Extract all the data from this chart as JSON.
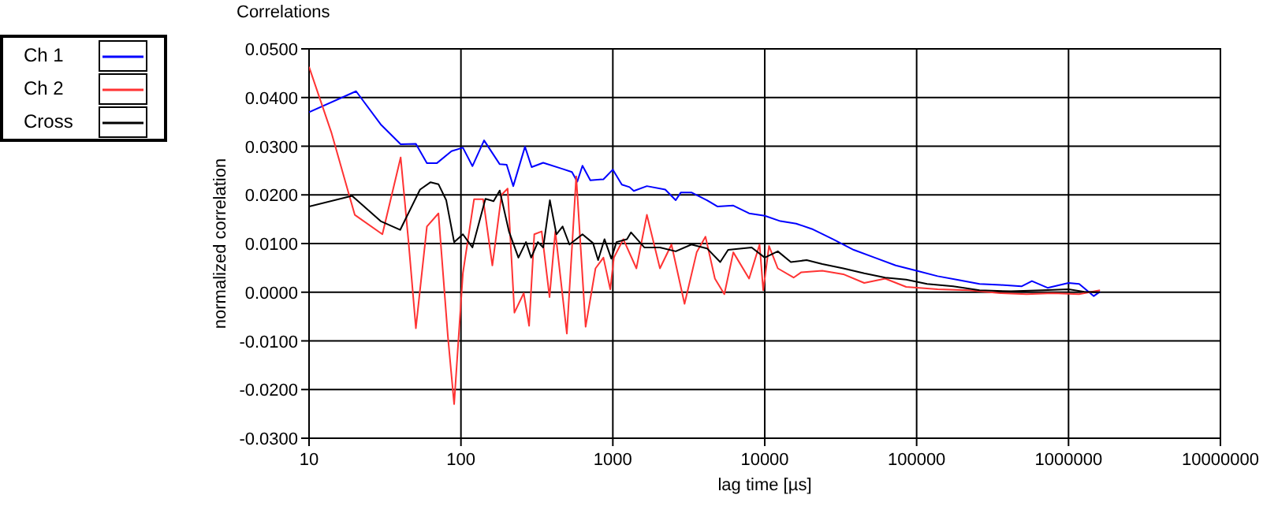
{
  "chart_data": {
    "type": "line",
    "title": "Correlations",
    "xlabel": "lag time [µs]",
    "ylabel": "normalized correlation",
    "log": "x",
    "grid": true,
    "legend": "top left",
    "line_style": "solid",
    "marker": "none",
    "xlim": [
      10,
      10000000
    ],
    "xticks": [
      10,
      100,
      1000,
      10000,
      100000,
      1000000,
      10000000
    ],
    "ylim": [
      -0.03,
      0.05
    ],
    "yticks": [
      {
        "value": -0.03,
        "label": "-0.0300"
      },
      {
        "value": -0.02,
        "label": "-0.0200"
      },
      {
        "value": -0.01,
        "label": "-0.0100"
      },
      {
        "value": 0,
        "label": "0.0000"
      },
      {
        "value": 0.01,
        "label": "0.0100"
      },
      {
        "value": 0.02,
        "label": "0.0200"
      },
      {
        "value": 0.03,
        "label": "0.0300"
      },
      {
        "value": 0.04,
        "label": "0.0400"
      },
      {
        "value": 0.05,
        "label": "0.0500"
      }
    ],
    "series": [
      {
        "name": "Ch 1",
        "color": "#0000ff",
        "x": [
          10,
          20.4,
          29.6,
          40.1,
          50.5,
          59.7,
          69.3,
          86.7,
          103,
          119,
          142,
          180,
          200,
          221,
          264,
          292,
          348,
          459,
          538,
          583,
          631,
          711,
          867,
          1000,
          1146,
          1288,
          1374,
          1675,
          2213,
          2594,
          2805,
          3289,
          4169,
          4898,
          6209,
          7889,
          10000,
          12680,
          16110,
          20420,
          28050,
          38550,
          52970,
          72780,
          100000,
          137400,
          188800,
          259400,
          356500,
          489800,
          574100,
          727800,
          1000000,
          1175000,
          1318000,
          1466000,
          1611000
        ],
        "values": [
          0.037,
          0.0413,
          0.0345,
          0.0304,
          0.0305,
          0.0265,
          0.0265,
          0.029,
          0.0297,
          0.0259,
          0.0312,
          0.0263,
          0.0262,
          0.0218,
          0.0299,
          0.0257,
          0.0266,
          0.0254,
          0.0247,
          0.0227,
          0.026,
          0.023,
          0.0232,
          0.0252,
          0.0221,
          0.0216,
          0.0208,
          0.0218,
          0.0211,
          0.0189,
          0.0205,
          0.0205,
          0.0189,
          0.0176,
          0.0178,
          0.0162,
          0.0157,
          0.0146,
          0.0141,
          0.013,
          0.0109,
          0.0087,
          0.0071,
          0.0055,
          0.0044,
          0.0033,
          0.0025,
          0.0017,
          0.0015,
          0.0012,
          0.0023,
          0.0009,
          0.0019,
          0.0017,
          0.0004,
          -0.0008,
          0.0001
        ]
      },
      {
        "name": "Ch 2",
        "color": "#ff3333",
        "x": [
          10,
          14,
          20,
          30.4,
          40.1,
          45.2,
          50.5,
          59.7,
          71.1,
          82,
          90.2,
          103,
          122,
          140,
          161,
          185,
          203,
          225,
          259,
          281,
          304,
          340,
          383,
          418,
          498,
          574,
          662,
          769,
          867,
          962,
          1016,
          1172,
          1429,
          1675,
          2042,
          2432,
          2965,
          3565,
          4074,
          4699,
          5420,
          6209,
          7889,
          9247,
          9772,
          10670,
          12190,
          15490,
          17420,
          23930,
          32890,
          45190,
          62090,
          85310,
          137400,
          221300,
          356500,
          529700,
          788800,
          1172000,
          1611000
        ],
        "values": [
          0.0463,
          0.0329,
          0.0159,
          0.0119,
          0.0277,
          0.0103,
          -0.0074,
          0.0135,
          0.0162,
          -0.009,
          -0.023,
          0.0039,
          0.0191,
          0.0191,
          0.0055,
          0.02,
          0.0213,
          -0.0042,
          -0.0002,
          -0.0069,
          0.0119,
          0.0125,
          -0.001,
          0.0125,
          -0.0085,
          0.0238,
          -0.0071,
          0.0049,
          0.0071,
          0.0006,
          0.0071,
          0.0109,
          0.0049,
          0.0159,
          0.0049,
          0.0098,
          -0.0024,
          0.0082,
          0.0114,
          0.0028,
          -0.0004,
          0.0082,
          0.0028,
          0.0098,
          0.0004,
          0.0095,
          0.0049,
          0.003,
          0.0041,
          0.0044,
          0.0037,
          0.0019,
          0.0028,
          0.0011,
          0.0006,
          0.0004,
          -0.0002,
          -0.0004,
          -0.0002,
          -0.0004,
          0.0004
        ]
      },
      {
        "name": "Cross",
        "color": "#000000",
        "x": [
          10,
          19.2,
          29.6,
          39.8,
          53.8,
          63.1,
          71.1,
          80,
          90.2,
          103,
          119,
          145,
          164,
          180,
          207,
          239,
          268,
          290,
          321,
          348,
          385,
          425,
          467,
          518,
          631,
          740,
          800,
          881,
          977,
          1057,
          1239,
          1318,
          1611,
          2042,
          2594,
          3289,
          4169,
          5093,
          5741,
          8204,
          10000,
          12190,
          14860,
          18880,
          23930,
          32890,
          45190,
          62090,
          85310,
          117200,
          174200,
          259400,
          417800,
          673000,
          1000000,
          1268000,
          1611000
        ],
        "values": [
          0.0176,
          0.0198,
          0.0146,
          0.0128,
          0.0211,
          0.0226,
          0.0222,
          0.0189,
          0.0103,
          0.0119,
          0.0092,
          0.0192,
          0.0187,
          0.0209,
          0.0125,
          0.0071,
          0.0103,
          0.0071,
          0.0103,
          0.0092,
          0.0189,
          0.0119,
          0.0135,
          0.0098,
          0.0119,
          0.0101,
          0.0066,
          0.0109,
          0.0069,
          0.0103,
          0.0109,
          0.0123,
          0.0092,
          0.0092,
          0.0084,
          0.0098,
          0.009,
          0.0062,
          0.0087,
          0.0092,
          0.0071,
          0.0084,
          0.0062,
          0.0066,
          0.0058,
          0.0049,
          0.0039,
          0.003,
          0.0026,
          0.0017,
          0.0012,
          0.0004,
          0.0002,
          0.0004,
          0.0006,
          0.0001,
          0
        ]
      }
    ]
  }
}
